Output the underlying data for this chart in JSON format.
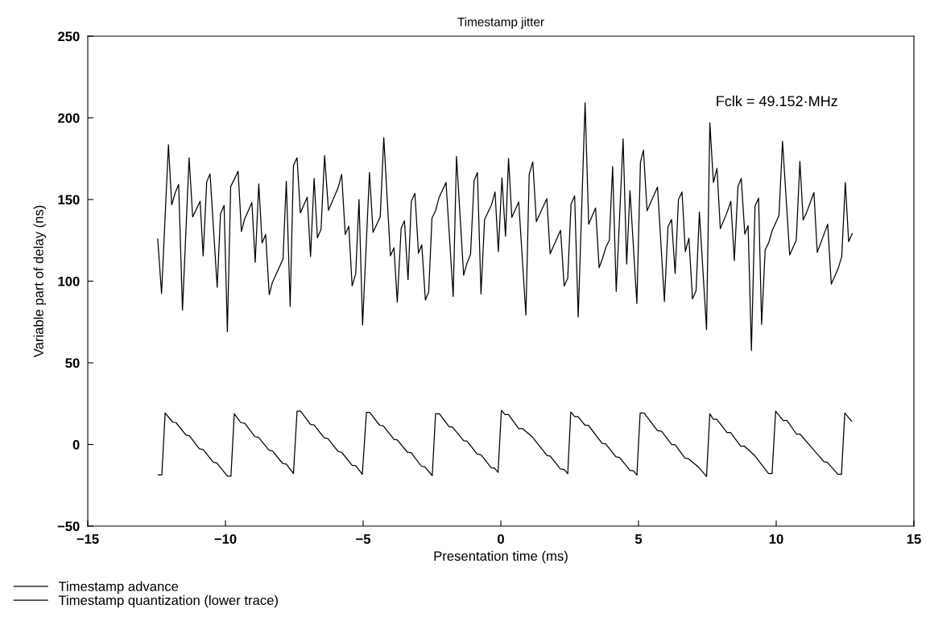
{
  "chart_data": {
    "type": "line",
    "title": "Timestamp jitter",
    "xlabel": "Presentation time (ms)",
    "ylabel": "Variable part of delay (ns)",
    "xlim": [
      -15,
      15
    ],
    "xticks": [
      -15,
      -10,
      -5,
      0,
      5,
      10,
      15
    ],
    "ylim": [
      -50,
      250
    ],
    "yticks": [
      -50,
      0,
      50,
      100,
      150,
      200,
      250
    ],
    "grid": false,
    "legend": "bottom",
    "marker": "none",
    "line_style": "solid",
    "annotations": [
      "Fclk = 49.152·MHz"
    ],
    "series": [
      {
        "name": "Timestamp advance",
        "color": "#000000",
        "x": [
          -12.46,
          -12.32,
          -12.07,
          -11.95,
          -11.83,
          -11.7,
          -11.56,
          -11.32,
          -11.19,
          -10.92,
          -10.81,
          -10.68,
          -10.56,
          -10.3,
          -10.18,
          -10.05,
          -9.93,
          -9.81,
          -9.54,
          -9.42,
          -9.3,
          -9.04,
          -8.92,
          -8.79,
          -8.67,
          -8.54,
          -8.41,
          -8.3,
          -7.91,
          -7.79,
          -7.65,
          -7.53,
          -7.4,
          -7.28,
          -7.03,
          -6.91,
          -6.78,
          -6.66,
          -6.53,
          -6.4,
          -6.26,
          -5.91,
          -5.78,
          -5.65,
          -5.52,
          -5.4,
          -5.27,
          -5.15,
          -5.02,
          -4.77,
          -4.64,
          -4.38,
          -4.25,
          -4.01,
          -3.88,
          -3.76,
          -3.62,
          -3.5,
          -3.37,
          -3.25,
          -3.12,
          -2.99,
          -2.87,
          -2.74,
          -2.62,
          -2.5,
          -2.37,
          -2.24,
          -1.99,
          -1.73,
          -1.61,
          -1.35,
          -1.23,
          -1.1,
          -0.97,
          -0.85,
          -0.72,
          -0.59,
          -0.34,
          -0.21,
          -0.09,
          0.04,
          0.17,
          0.28,
          0.4,
          0.65,
          0.91,
          1.03,
          1.16,
          1.29,
          1.67,
          1.79,
          2.17,
          2.3,
          2.43,
          2.55,
          2.68,
          2.81,
          3.06,
          3.19,
          3.44,
          3.57,
          3.69,
          3.82,
          3.94,
          4.06,
          4.19,
          4.44,
          4.57,
          4.69,
          4.94,
          5.07,
          5.18,
          5.31,
          5.69,
          5.94,
          6.07,
          6.2,
          6.33,
          6.45,
          6.58,
          6.7,
          6.83,
          6.96,
          7.09,
          7.21,
          7.47,
          7.59,
          7.72,
          7.85,
          7.97,
          8.22,
          8.35,
          8.48,
          8.61,
          8.73,
          8.86,
          8.98,
          9.1,
          9.23,
          9.36,
          9.47,
          9.6,
          9.73,
          9.85,
          10.1,
          10.23,
          10.49,
          10.73,
          10.86,
          10.98,
          11.11,
          11.37,
          11.49,
          11.87,
          12.0,
          12.25,
          12.38,
          12.51,
          12.63,
          12.76
        ],
        "values": [
          125.8,
          92.4,
          183.5,
          146.7,
          153.8,
          159.3,
          82.2,
          175.6,
          139.3,
          148.9,
          115.5,
          160.9,
          165.7,
          96.2,
          141.1,
          146.4,
          69.0,
          157.9,
          167.3,
          130.4,
          138.2,
          148.1,
          111.5,
          159.6,
          123.4,
          128.6,
          91.7,
          99.0,
          113.5,
          161.2,
          84.6,
          170.8,
          175.6,
          141.8,
          151.4,
          115.1,
          162.9,
          126.6,
          131.6,
          176.9,
          143.4,
          157.1,
          165.4,
          128.6,
          133.6,
          97.0,
          104.4,
          150.0,
          73.1,
          166.5,
          129.9,
          139.3,
          187.9,
          115.5,
          120.4,
          87.1,
          132.4,
          137.0,
          100.9,
          148.9,
          153.8,
          117.1,
          122.2,
          88.4,
          93.4,
          138.7,
          143.1,
          151.4,
          160.4,
          90.7,
          176.4,
          103.6,
          111.0,
          116.4,
          161.6,
          166.5,
          92.1,
          137.8,
          146.7,
          154.6,
          118.1,
          163.2,
          127.5,
          175.2,
          139.0,
          148.5,
          79.2,
          165.4,
          173.1,
          136.5,
          150.5,
          116.8,
          131.1,
          97.0,
          101.9,
          147.2,
          152.2,
          78.1,
          209.3,
          134.9,
          144.8,
          108.2,
          113.8,
          120.9,
          125.0,
          170.3,
          93.7,
          187.1,
          110.5,
          155.5,
          86.3,
          172.8,
          180.2,
          143.1,
          157.6,
          87.6,
          133.2,
          137.8,
          104.7,
          150.0,
          154.6,
          118.1,
          126.3,
          89.1,
          94.2,
          142.3,
          70.2,
          197.0,
          160.4,
          169.1,
          132.1,
          142.3,
          148.9,
          112.6,
          157.9,
          162.9,
          128.8,
          134.0,
          57.5,
          145.9,
          150.8,
          73.5,
          119.2,
          123.7,
          130.8,
          140.2,
          185.6,
          116.0,
          125.3,
          173.3,
          137.4,
          142.3,
          154.3,
          117.6,
          134.9,
          98.2,
          107.7,
          115.1,
          160.4,
          124.2,
          129.1
        ]
      },
      {
        "name": "Timestamp quantization (lower trace)",
        "color": "#000000",
        "x": [
          -12.44,
          -12.31,
          -12.19,
          -11.92,
          -11.79,
          -11.44,
          -11.31,
          -10.95,
          -10.81,
          -10.44,
          -10.31,
          -9.93,
          -9.8,
          -9.68,
          -9.44,
          -9.3,
          -8.93,
          -8.8,
          -8.42,
          -8.29,
          -7.92,
          -7.79,
          -7.53,
          -7.4,
          -7.27,
          -6.91,
          -6.78,
          -6.41,
          -6.28,
          -5.91,
          -5.78,
          -5.4,
          -5.27,
          -5.03,
          -4.88,
          -4.76,
          -4.4,
          -4.27,
          -3.88,
          -3.76,
          -3.39,
          -3.25,
          -2.89,
          -2.76,
          -2.49,
          -2.37,
          -2.23,
          -1.88,
          -1.75,
          -1.35,
          -1.23,
          -0.86,
          -0.72,
          -0.35,
          -0.23,
          -0.1,
          0.02,
          0.15,
          0.28,
          0.65,
          0.79,
          1.16,
          1.68,
          1.79,
          2.16,
          2.3,
          2.43,
          2.54,
          2.68,
          2.8,
          3.06,
          3.18,
          3.68,
          3.81,
          4.18,
          4.31,
          4.69,
          4.82,
          4.94,
          5.06,
          5.2,
          5.69,
          5.84,
          6.2,
          6.33,
          6.69,
          6.81,
          7.2,
          7.47,
          7.59,
          7.71,
          7.84,
          8.21,
          8.34,
          8.71,
          8.84,
          9.22,
          9.72,
          9.85,
          9.98,
          10.25,
          10.39,
          10.73,
          10.86,
          11.73,
          11.86,
          12.24,
          12.37,
          12.49,
          12.74
        ],
        "values": [
          -18.6,
          -18.6,
          19.3,
          13.8,
          13.3,
          5.8,
          5.3,
          -2.6,
          -3.1,
          -10.9,
          -11.4,
          -19.4,
          -19.4,
          18.8,
          13.3,
          13.0,
          4.8,
          4.4,
          -3.5,
          -4.0,
          -11.7,
          -12.0,
          -17.8,
          20.4,
          20.4,
          12.2,
          11.9,
          4.0,
          3.6,
          -4.3,
          -4.8,
          -12.8,
          -13.0,
          -18.3,
          19.6,
          19.6,
          11.7,
          11.4,
          3.1,
          2.8,
          -4.8,
          -5.1,
          -13.3,
          -13.7,
          -19.1,
          18.8,
          18.8,
          10.9,
          10.5,
          2.3,
          2.0,
          -5.9,
          -6.3,
          -14.2,
          -14.5,
          -17.1,
          20.9,
          18.3,
          18.3,
          9.7,
          9.7,
          4.3,
          -6.8,
          -7.1,
          -15.0,
          -15.3,
          -17.9,
          19.9,
          17.1,
          17.1,
          11.7,
          11.7,
          0.7,
          0.3,
          -7.6,
          -7.9,
          -15.8,
          -16.2,
          -18.8,
          19.3,
          19.3,
          8.4,
          8.1,
          0.1,
          -0.2,
          -8.4,
          -8.7,
          -14.2,
          -19.6,
          18.8,
          15.5,
          15.5,
          7.3,
          7.3,
          -1.0,
          -1.0,
          -6.8,
          -17.8,
          -17.8,
          20.4,
          14.7,
          14.7,
          6.4,
          6.4,
          -10.5,
          -11.0,
          -18.3,
          -18.3,
          19.3,
          14.2
        ]
      }
    ]
  }
}
